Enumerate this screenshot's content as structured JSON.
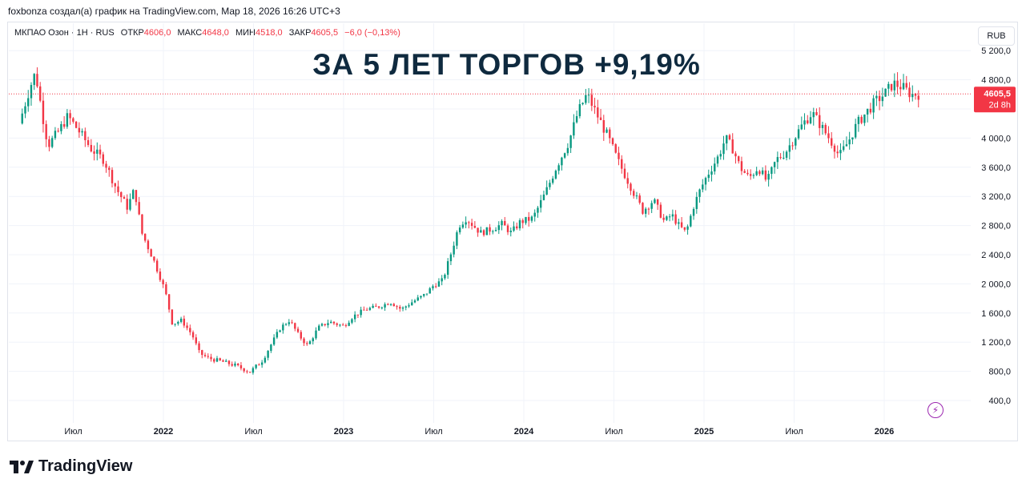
{
  "header": {
    "caption": "foxbonza создал(а) график на TradingView.com, Мар 18, 2026 16:26 UTC+3"
  },
  "legend": {
    "symbol": "МКПАО Озон · 1Н · RUS",
    "open_label": "ОТКР",
    "open_value": "4606,0",
    "high_label": "МАКС",
    "high_value": "4648,0",
    "low_label": "МИН",
    "low_value": "4518,0",
    "close_label": "ЗАКР",
    "close_value": "4605,5",
    "change_value": "−6,0 (−0,13%)"
  },
  "toolbar": {
    "currency_label": "RUB"
  },
  "headline": "ЗА 5 ЛЕТ ТОРГОВ +9,19%",
  "price_badge": {
    "price": "4605,5",
    "countdown": "2d 8h"
  },
  "brand": {
    "logo_text": "TradingView"
  },
  "icons": {
    "lightning": "lightning-icon",
    "logo": "tradingview-logo-icon"
  },
  "colors": {
    "up": "#089981",
    "down": "#f23645",
    "headline": "#0f2a3f",
    "grid": "#f0f3fa"
  },
  "chart_data": {
    "type": "candlestick",
    "y_axis": {
      "min": 200,
      "max": 5300,
      "ticks": [
        400,
        800,
        1200,
        1600,
        2000,
        2400,
        2800,
        3200,
        3600,
        4000,
        4400,
        4800,
        5200
      ],
      "tick_labels": [
        "400,0",
        "800,0",
        "1 200,0",
        "1 600,0",
        "2 000,0",
        "2 400,0",
        "2 800,0",
        "3 200,0",
        "3 600,0",
        "4 000,0",
        "",
        "4 800,0",
        "5 200,0"
      ]
    },
    "x_axis": {
      "start": 2021.19,
      "end": 2026.44,
      "ticks": [
        {
          "x": 2021.5,
          "label": "Июл"
        },
        {
          "x": 2022.0,
          "label": "2022"
        },
        {
          "x": 2022.5,
          "label": "Июл"
        },
        {
          "x": 2023.0,
          "label": "2023"
        },
        {
          "x": 2023.5,
          "label": "Июл"
        },
        {
          "x": 2024.0,
          "label": "2024"
        },
        {
          "x": 2024.5,
          "label": "Июл"
        },
        {
          "x": 2025.0,
          "label": "2025"
        },
        {
          "x": 2025.5,
          "label": "Июл"
        },
        {
          "x": 2026.0,
          "label": "2026"
        }
      ]
    },
    "last_price": 4605.5,
    "price_path": [
      [
        2021.2,
        4200
      ],
      [
        2021.26,
        4700
      ],
      [
        2021.29,
        4900
      ],
      [
        2021.33,
        4300
      ],
      [
        2021.36,
        3900
      ],
      [
        2021.42,
        4100
      ],
      [
        2021.47,
        4300
      ],
      [
        2021.53,
        4100
      ],
      [
        2021.6,
        3850
      ],
      [
        2021.67,
        3700
      ],
      [
        2021.74,
        3300
      ],
      [
        2021.8,
        3050
      ],
      [
        2021.84,
        3300
      ],
      [
        2021.88,
        2700
      ],
      [
        2021.95,
        2300
      ],
      [
        2022.01,
        1900
      ],
      [
        2022.05,
        1450
      ],
      [
        2022.1,
        1500
      ],
      [
        2022.16,
        1300
      ],
      [
        2022.2,
        1050
      ],
      [
        2022.25,
        980
      ],
      [
        2022.33,
        930
      ],
      [
        2022.4,
        880
      ],
      [
        2022.48,
        790
      ],
      [
        2022.55,
        950
      ],
      [
        2022.6,
        1180
      ],
      [
        2022.65,
        1400
      ],
      [
        2022.7,
        1500
      ],
      [
        2022.75,
        1300
      ],
      [
        2022.8,
        1150
      ],
      [
        2022.86,
        1400
      ],
      [
        2022.92,
        1480
      ],
      [
        2023.0,
        1420
      ],
      [
        2023.05,
        1550
      ],
      [
        2023.12,
        1650
      ],
      [
        2023.2,
        1690
      ],
      [
        2023.26,
        1750
      ],
      [
        2023.32,
        1650
      ],
      [
        2023.38,
        1750
      ],
      [
        2023.45,
        1850
      ],
      [
        2023.5,
        1980
      ],
      [
        2023.55,
        2050
      ],
      [
        2023.6,
        2450
      ],
      [
        2023.64,
        2800
      ],
      [
        2023.68,
        2900
      ],
      [
        2023.72,
        2800
      ],
      [
        2023.76,
        2700
      ],
      [
        2023.82,
        2750
      ],
      [
        2023.88,
        2820
      ],
      [
        2023.93,
        2700
      ],
      [
        2023.98,
        2850
      ],
      [
        2024.05,
        2900
      ],
      [
        2024.12,
        3250
      ],
      [
        2024.18,
        3600
      ],
      [
        2024.25,
        3950
      ],
      [
        2024.3,
        4350
      ],
      [
        2024.35,
        4600
      ],
      [
        2024.38,
        4450
      ],
      [
        2024.42,
        4250
      ],
      [
        2024.47,
        4000
      ],
      [
        2024.52,
        3700
      ],
      [
        2024.58,
        3400
      ],
      [
        2024.62,
        3200
      ],
      [
        2024.66,
        3000
      ],
      [
        2024.72,
        3150
      ],
      [
        2024.78,
        2850
      ],
      [
        2024.82,
        2950
      ],
      [
        2024.86,
        2800
      ],
      [
        2024.9,
        2700
      ],
      [
        2024.94,
        3050
      ],
      [
        2024.98,
        3300
      ],
      [
        2025.02,
        3500
      ],
      [
        2025.08,
        3750
      ],
      [
        2025.12,
        4000
      ],
      [
        2025.16,
        3850
      ],
      [
        2025.2,
        3600
      ],
      [
        2025.25,
        3450
      ],
      [
        2025.3,
        3600
      ],
      [
        2025.35,
        3400
      ],
      [
        2025.4,
        3700
      ],
      [
        2025.45,
        3800
      ],
      [
        2025.5,
        4000
      ],
      [
        2025.55,
        4200
      ],
      [
        2025.6,
        4350
      ],
      [
        2025.64,
        4200
      ],
      [
        2025.68,
        4050
      ],
      [
        2025.72,
        3900
      ],
      [
        2025.75,
        3750
      ],
      [
        2025.8,
        3950
      ],
      [
        2025.85,
        4200
      ],
      [
        2025.9,
        4350
      ],
      [
        2025.95,
        4500
      ],
      [
        2026.0,
        4600
      ],
      [
        2026.05,
        4750
      ],
      [
        2026.1,
        4700
      ],
      [
        2026.15,
        4600
      ],
      [
        2026.19,
        4605
      ]
    ]
  }
}
